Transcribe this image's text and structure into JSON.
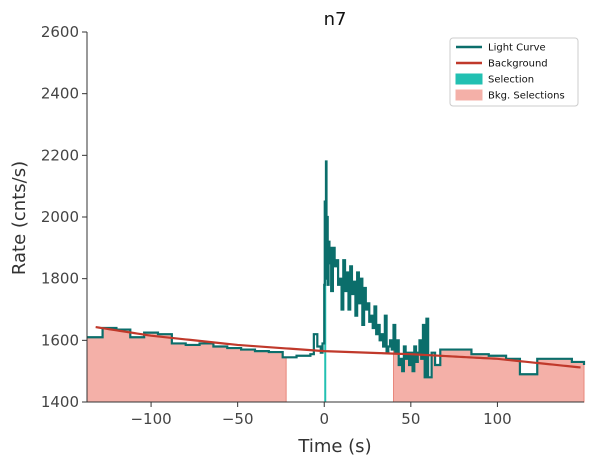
{
  "chart_data": {
    "type": "line",
    "title": "n7",
    "xlabel": "Time (s)",
    "ylabel": "Rate (cnts/s)",
    "xlim": [
      -137,
      150
    ],
    "ylim": [
      1400,
      2600
    ],
    "xticks": [
      -100,
      -50,
      0,
      50,
      100
    ],
    "yticks": [
      1400,
      1600,
      1800,
      2000,
      2200,
      2400,
      2600
    ],
    "grid": false,
    "legend_position": "top-right",
    "legend": [
      {
        "label": "Light Curve",
        "kind": "line",
        "color": "#0b6e6b"
      },
      {
        "label": "Background",
        "kind": "line",
        "color": "#c0392b"
      },
      {
        "label": "Selection",
        "kind": "patch",
        "color": "#22c0b2"
      },
      {
        "label": "Bkg. Selections",
        "kind": "patch",
        "color": "#f4b0a8"
      }
    ],
    "colors": {
      "light_curve": "#0b6e6b",
      "background": "#c0392b",
      "selection": "#22c0b2",
      "bkg_fill": "#f4b0a8",
      "bkg_edge": "#e8877b"
    },
    "background_fit": {
      "x": [
        -132,
        -100,
        -50,
        0,
        50,
        100,
        148
      ],
      "y": [
        1643,
        1615,
        1585,
        1565,
        1555,
        1540,
        1512
      ]
    },
    "bkg_selections": [
      [
        -137,
        -22
      ],
      [
        40,
        150
      ]
    ],
    "source_selection": [
      0,
      1
    ],
    "light_curve": {
      "x": [
        -137,
        -128,
        -120,
        -112,
        -104,
        -96,
        -88,
        -80,
        -72,
        -64,
        -56,
        -48,
        -40,
        -32,
        -24,
        -16,
        -8,
        -6,
        -4,
        -2,
        -1,
        0,
        0.3,
        0.6,
        1,
        1.3,
        1.6,
        2,
        2.5,
        3,
        3.5,
        4,
        5,
        6,
        7,
        8,
        9,
        10,
        11,
        12,
        13,
        14,
        15,
        16,
        17,
        18,
        19,
        20,
        21,
        22,
        23,
        24,
        25,
        26,
        27,
        28,
        29,
        30,
        31,
        32,
        33,
        34,
        35,
        36,
        37,
        38,
        39,
        40,
        41,
        42,
        43,
        44,
        45,
        46,
        47,
        48,
        49,
        50,
        51,
        52,
        53,
        54,
        55,
        56,
        57,
        58,
        59,
        60,
        62,
        64,
        67,
        75,
        85,
        95,
        105,
        113,
        123,
        133,
        143,
        150
      ],
      "y": [
        1610,
        1640,
        1635,
        1610,
        1625,
        1620,
        1590,
        1585,
        1590,
        1580,
        1575,
        1570,
        1565,
        1562,
        1545,
        1550,
        1555,
        1620,
        1580,
        1560,
        1590,
        1780,
        2050,
        1800,
        2180,
        1900,
        2000,
        1780,
        1920,
        1850,
        1900,
        1760,
        1900,
        1840,
        1860,
        1780,
        1800,
        1700,
        1860,
        1760,
        1820,
        1700,
        1840,
        1750,
        1790,
        1680,
        1820,
        1720,
        1800,
        1650,
        1770,
        1700,
        1720,
        1660,
        1680,
        1640,
        1710,
        1620,
        1650,
        1600,
        1620,
        1580,
        1680,
        1560,
        1580,
        1600,
        1570,
        1650,
        1560,
        1600,
        1520,
        1540,
        1500,
        1580,
        1540,
        1560,
        1520,
        1560,
        1500,
        1580,
        1530,
        1560,
        1600,
        1540,
        1650,
        1480,
        1670,
        1480,
        1560,
        1520,
        1570,
        1570,
        1555,
        1550,
        1540,
        1490,
        1540,
        1540,
        1530,
        1520
      ]
    }
  }
}
